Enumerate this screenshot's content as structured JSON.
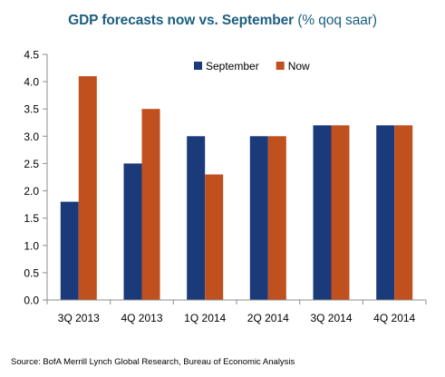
{
  "chart_data": {
    "type": "bar",
    "title": "GDP forecasts now vs. September",
    "subtitle": "(% qoq saar)",
    "categories": [
      "3Q 2013",
      "4Q 2013",
      "1Q 2014",
      "2Q 2014",
      "3Q 2014",
      "4Q 2014"
    ],
    "series": [
      {
        "name": "September",
        "color": "#1b3a7a",
        "values": [
          1.8,
          2.5,
          3.0,
          3.0,
          3.2,
          3.2
        ]
      },
      {
        "name": "Now",
        "color": "#c1501f",
        "values": [
          4.1,
          3.5,
          2.3,
          3.0,
          3.2,
          3.2
        ]
      }
    ],
    "xlabel": "",
    "ylabel": "",
    "ylim": [
      0,
      4.5
    ],
    "yticks": [
      "0.0",
      "0.5",
      "1.0",
      "1.5",
      "2.0",
      "2.5",
      "3.0",
      "3.5",
      "4.0",
      "4.5"
    ],
    "grid": false,
    "legend": "top-right",
    "title_color": "#1b5e80"
  },
  "source": "Source: BofA Merrill Lynch Global Research, Bureau of Economic Analysis"
}
